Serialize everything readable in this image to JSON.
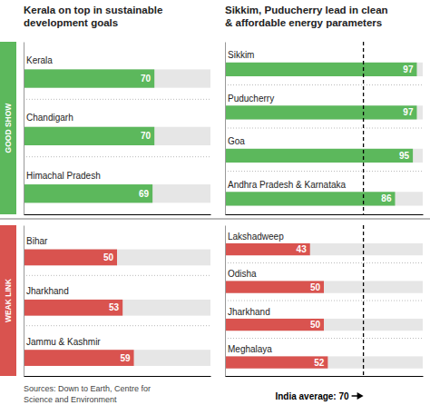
{
  "chart_data": [
    {
      "type": "bar",
      "orientation": "horizontal",
      "title": "Kerala on top in sustainable\ndevelopment goals",
      "ylabel": "GOOD SHOW",
      "categories": [
        "Kerala",
        "Chandigarh",
        "Himachal Pradesh"
      ],
      "values": [
        70,
        70,
        69
      ],
      "color": "#5cb85c",
      "xlim": [
        0,
        100
      ],
      "data_labels": true,
      "tick_labels": "y"
    },
    {
      "type": "bar",
      "orientation": "horizontal",
      "title": "Sikkim, Puducherry lead in clean\n& affordable energy parameters",
      "categories": [
        "Sikkim",
        "Puducherry",
        "Goa",
        "Andhra Pradesh & Karnataka"
      ],
      "values": [
        97,
        97,
        95,
        86
      ],
      "color": "#5cb85c",
      "xlim": [
        0,
        100
      ],
      "data_labels": true,
      "tick_labels": "y",
      "average_line": 70
    },
    {
      "type": "bar",
      "orientation": "horizontal",
      "ylabel": "WEAK LINK",
      "categories": [
        "Bihar",
        "Jharkhand",
        "Jammu & Kashmir"
      ],
      "values": [
        50,
        53,
        59
      ],
      "color": "#d9534f",
      "xlim": [
        0,
        100
      ],
      "data_labels": true,
      "tick_labels": "y",
      "annotations": [
        {
          "text": "Sources: Down to Earth, Centre for\nScience and Environment"
        }
      ]
    },
    {
      "type": "bar",
      "orientation": "horizontal",
      "categories": [
        "Lakshadweep",
        "Odisha",
        "Jharkhand",
        "Meghalaya"
      ],
      "values": [
        43,
        50,
        50,
        52
      ],
      "color": "#d9534f",
      "xlim": [
        0,
        100
      ],
      "data_labels": true,
      "tick_labels": "y",
      "average_line": 70,
      "annotations": [
        {
          "text": "India average: 70"
        }
      ]
    }
  ]
}
